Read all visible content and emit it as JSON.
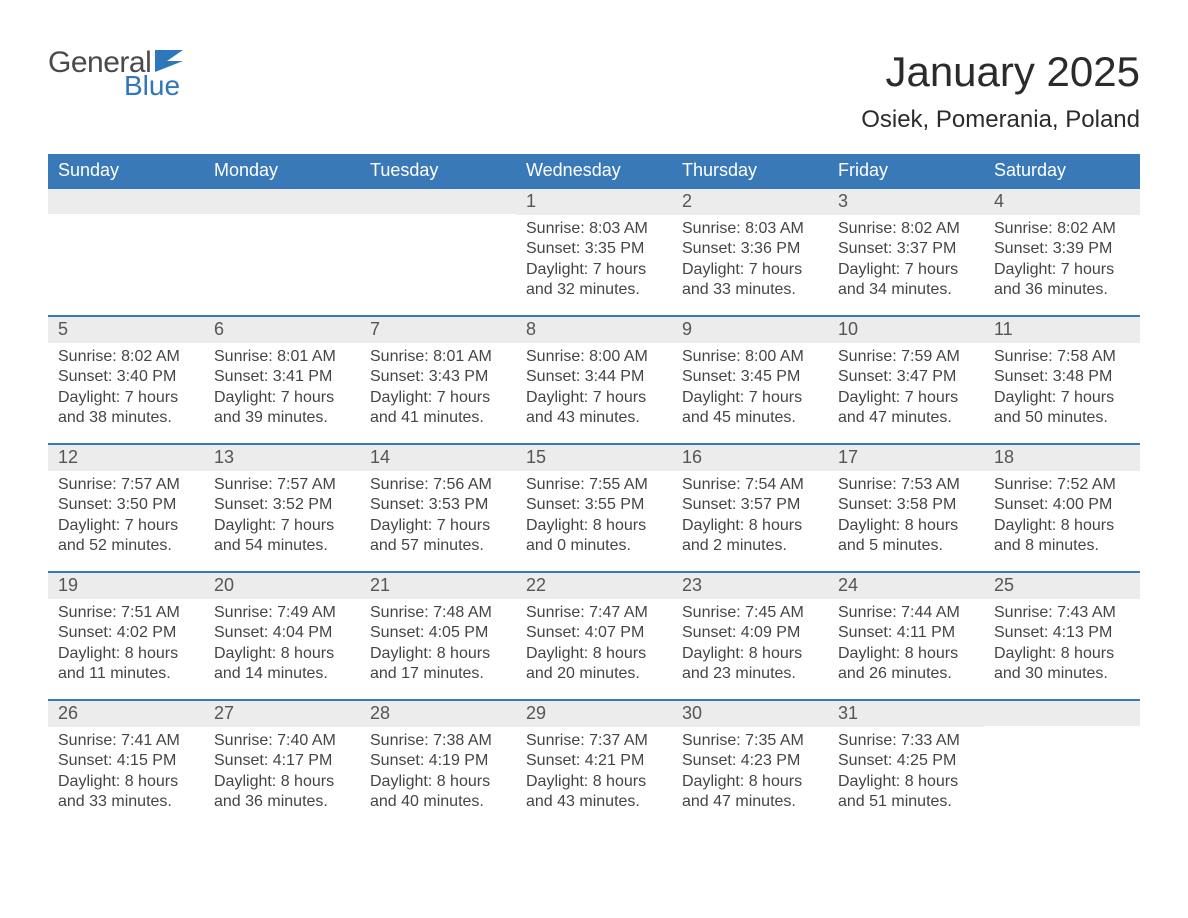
{
  "logo": {
    "word1": "General",
    "word2": "Blue",
    "text_color": "#4a4a4a",
    "accent_color": "#2f77bb"
  },
  "title": "January 2025",
  "location": "Osiek, Pomerania, Poland",
  "colors": {
    "header_bg": "#3a79b7",
    "header_text": "#ffffff",
    "daynum_bg": "#ececec",
    "week_border": "#3a79b7",
    "body_text": "#454545",
    "page_bg": "#ffffff"
  },
  "fonts": {
    "title_size": 42,
    "location_size": 24,
    "dow_size": 18,
    "daynum_size": 18,
    "body_size": 16
  },
  "day_labels": [
    "Sunday",
    "Monday",
    "Tuesday",
    "Wednesday",
    "Thursday",
    "Friday",
    "Saturday"
  ],
  "line_templates": {
    "sunrise": "Sunrise: {v}",
    "sunset": "Sunset: {v}",
    "daylight1": "Daylight: {h} hours",
    "daylight2": "and {m} minutes."
  },
  "weeks": [
    [
      null,
      null,
      null,
      {
        "n": "1",
        "sunrise": "8:03 AM",
        "sunset": "3:35 PM",
        "dh": "7",
        "dm": "32"
      },
      {
        "n": "2",
        "sunrise": "8:03 AM",
        "sunset": "3:36 PM",
        "dh": "7",
        "dm": "33"
      },
      {
        "n": "3",
        "sunrise": "8:02 AM",
        "sunset": "3:37 PM",
        "dh": "7",
        "dm": "34"
      },
      {
        "n": "4",
        "sunrise": "8:02 AM",
        "sunset": "3:39 PM",
        "dh": "7",
        "dm": "36"
      }
    ],
    [
      {
        "n": "5",
        "sunrise": "8:02 AM",
        "sunset": "3:40 PM",
        "dh": "7",
        "dm": "38"
      },
      {
        "n": "6",
        "sunrise": "8:01 AM",
        "sunset": "3:41 PM",
        "dh": "7",
        "dm": "39"
      },
      {
        "n": "7",
        "sunrise": "8:01 AM",
        "sunset": "3:43 PM",
        "dh": "7",
        "dm": "41"
      },
      {
        "n": "8",
        "sunrise": "8:00 AM",
        "sunset": "3:44 PM",
        "dh": "7",
        "dm": "43"
      },
      {
        "n": "9",
        "sunrise": "8:00 AM",
        "sunset": "3:45 PM",
        "dh": "7",
        "dm": "45"
      },
      {
        "n": "10",
        "sunrise": "7:59 AM",
        "sunset": "3:47 PM",
        "dh": "7",
        "dm": "47"
      },
      {
        "n": "11",
        "sunrise": "7:58 AM",
        "sunset": "3:48 PM",
        "dh": "7",
        "dm": "50"
      }
    ],
    [
      {
        "n": "12",
        "sunrise": "7:57 AM",
        "sunset": "3:50 PM",
        "dh": "7",
        "dm": "52"
      },
      {
        "n": "13",
        "sunrise": "7:57 AM",
        "sunset": "3:52 PM",
        "dh": "7",
        "dm": "54"
      },
      {
        "n": "14",
        "sunrise": "7:56 AM",
        "sunset": "3:53 PM",
        "dh": "7",
        "dm": "57"
      },
      {
        "n": "15",
        "sunrise": "7:55 AM",
        "sunset": "3:55 PM",
        "dh": "8",
        "dm": "0"
      },
      {
        "n": "16",
        "sunrise": "7:54 AM",
        "sunset": "3:57 PM",
        "dh": "8",
        "dm": "2"
      },
      {
        "n": "17",
        "sunrise": "7:53 AM",
        "sunset": "3:58 PM",
        "dh": "8",
        "dm": "5"
      },
      {
        "n": "18",
        "sunrise": "7:52 AM",
        "sunset": "4:00 PM",
        "dh": "8",
        "dm": "8"
      }
    ],
    [
      {
        "n": "19",
        "sunrise": "7:51 AM",
        "sunset": "4:02 PM",
        "dh": "8",
        "dm": "11"
      },
      {
        "n": "20",
        "sunrise": "7:49 AM",
        "sunset": "4:04 PM",
        "dh": "8",
        "dm": "14"
      },
      {
        "n": "21",
        "sunrise": "7:48 AM",
        "sunset": "4:05 PM",
        "dh": "8",
        "dm": "17"
      },
      {
        "n": "22",
        "sunrise": "7:47 AM",
        "sunset": "4:07 PM",
        "dh": "8",
        "dm": "20"
      },
      {
        "n": "23",
        "sunrise": "7:45 AM",
        "sunset": "4:09 PM",
        "dh": "8",
        "dm": "23"
      },
      {
        "n": "24",
        "sunrise": "7:44 AM",
        "sunset": "4:11 PM",
        "dh": "8",
        "dm": "26"
      },
      {
        "n": "25",
        "sunrise": "7:43 AM",
        "sunset": "4:13 PM",
        "dh": "8",
        "dm": "30"
      }
    ],
    [
      {
        "n": "26",
        "sunrise": "7:41 AM",
        "sunset": "4:15 PM",
        "dh": "8",
        "dm": "33"
      },
      {
        "n": "27",
        "sunrise": "7:40 AM",
        "sunset": "4:17 PM",
        "dh": "8",
        "dm": "36"
      },
      {
        "n": "28",
        "sunrise": "7:38 AM",
        "sunset": "4:19 PM",
        "dh": "8",
        "dm": "40"
      },
      {
        "n": "29",
        "sunrise": "7:37 AM",
        "sunset": "4:21 PM",
        "dh": "8",
        "dm": "43"
      },
      {
        "n": "30",
        "sunrise": "7:35 AM",
        "sunset": "4:23 PM",
        "dh": "8",
        "dm": "47"
      },
      {
        "n": "31",
        "sunrise": "7:33 AM",
        "sunset": "4:25 PM",
        "dh": "8",
        "dm": "51"
      },
      null
    ]
  ]
}
